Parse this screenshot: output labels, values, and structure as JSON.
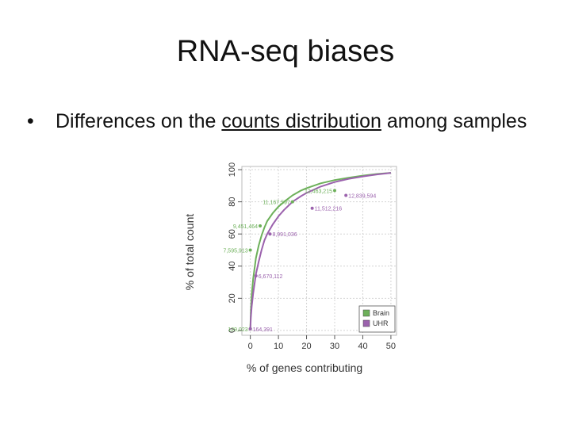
{
  "slide": {
    "title": "RNA-seq biases",
    "bullet_marker": "•",
    "bullet_pre": "Differences on the ",
    "bullet_underlined": "counts distribution",
    "bullet_post": " among samples"
  },
  "chart_data": {
    "type": "line",
    "xlabel": "% of genes contributing",
    "ylabel": "% of total count",
    "xlim": [
      -3,
      52
    ],
    "ylim": [
      -3,
      102
    ],
    "xticks": [
      0,
      10,
      20,
      30,
      40,
      50
    ],
    "yticks": [
      0,
      20,
      40,
      60,
      80,
      100
    ],
    "grid": true,
    "legend_position": "bottom-right",
    "series": [
      {
        "name": "Brain",
        "color": "#6db05a",
        "x": [
          0,
          0.2,
          0.5,
          1,
          2,
          3,
          4,
          5,
          6,
          8,
          10,
          12,
          15,
          18,
          20,
          25,
          30,
          35,
          40,
          45,
          50
        ],
        "y": [
          0,
          12,
          22,
          32,
          45,
          53,
          59,
          64,
          68,
          73,
          77,
          80,
          84,
          87,
          88.5,
          91.5,
          93.5,
          95,
          96.3,
          97.3,
          98
        ]
      },
      {
        "name": "UHR",
        "color": "#9b62ad",
        "x": [
          0,
          0.2,
          0.5,
          1,
          2,
          3,
          4,
          5,
          6,
          8,
          10,
          12,
          15,
          18,
          20,
          25,
          30,
          35,
          40,
          45,
          50
        ],
        "y": [
          0,
          8,
          15,
          23,
          35,
          43,
          50,
          56,
          60,
          66,
          71,
          75,
          80,
          83.5,
          85.5,
          89.5,
          92.3,
          94.3,
          95.8,
          97,
          98
        ]
      }
    ],
    "annotations": [
      {
        "text": "129,023",
        "x": 0,
        "y": 1,
        "series": "Brain",
        "anchor": "end"
      },
      {
        "text": "164,391",
        "x": 0,
        "y": 1,
        "series": "UHR",
        "anchor": "start"
      },
      {
        "text": "7,595,913",
        "x": 0,
        "y": 50,
        "series": "Brain",
        "anchor": "end"
      },
      {
        "text": "6,670,112",
        "x": 2,
        "y": 34,
        "series": "UHR",
        "anchor": "start"
      },
      {
        "text": "9,451,464",
        "x": 3.5,
        "y": 65,
        "series": "Brain",
        "anchor": "end"
      },
      {
        "text": "8,991,036",
        "x": 7,
        "y": 60,
        "series": "UHR",
        "anchor": "start"
      },
      {
        "text": "11,167,597",
        "x": 15,
        "y": 80,
        "series": "Brain",
        "anchor": "end"
      },
      {
        "text": "11,512,216",
        "x": 22,
        "y": 76,
        "series": "UHR",
        "anchor": "start"
      },
      {
        "text": "12,463,215",
        "x": 30,
        "y": 87,
        "series": "Brain",
        "anchor": "end"
      },
      {
        "text": "12,839,594",
        "x": 34,
        "y": 84,
        "series": "UHR",
        "anchor": "start"
      }
    ]
  }
}
